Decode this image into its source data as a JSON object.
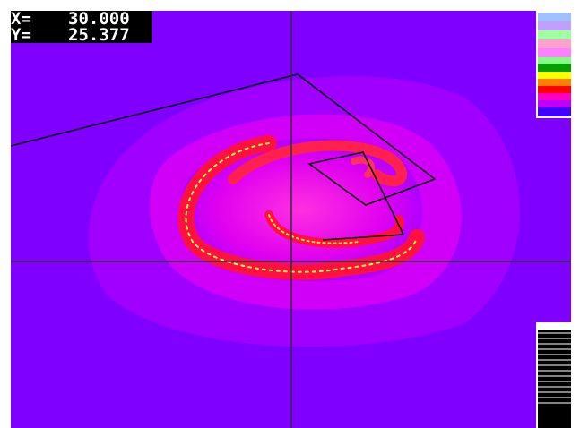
{
  "readout": {
    "x_label": "X=",
    "x_value": "30.000",
    "y_label": "Y=",
    "y_value": "25.377"
  }
}
